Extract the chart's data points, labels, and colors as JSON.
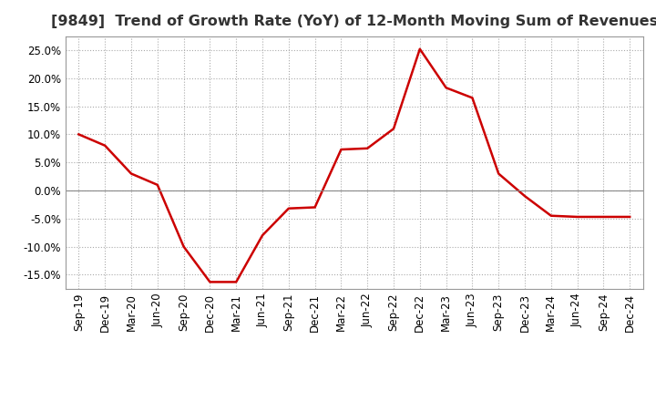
{
  "title": "[9849]  Trend of Growth Rate (YoY) of 12-Month Moving Sum of Revenues",
  "x_labels": [
    "Sep-19",
    "Dec-19",
    "Mar-20",
    "Jun-20",
    "Sep-20",
    "Dec-20",
    "Mar-21",
    "Jun-21",
    "Sep-21",
    "Dec-21",
    "Mar-22",
    "Jun-22",
    "Sep-22",
    "Dec-22",
    "Mar-23",
    "Jun-23",
    "Sep-23",
    "Dec-23",
    "Mar-24",
    "Jun-24",
    "Sep-24",
    "Dec-24"
  ],
  "y_values": [
    0.1,
    0.08,
    0.03,
    0.01,
    -0.1,
    -0.163,
    -0.163,
    -0.08,
    -0.032,
    -0.03,
    0.073,
    0.075,
    0.11,
    0.252,
    0.183,
    0.165,
    0.03,
    -0.01,
    -0.045,
    -0.047,
    -0.047,
    -0.047
  ],
  "line_color": "#CC0000",
  "background_color": "#FFFFFF",
  "plot_bg_color": "#FFFFFF",
  "grid_color": "#AAAAAA",
  "ylim": [
    -0.175,
    0.275
  ],
  "yticks": [
    -0.15,
    -0.1,
    -0.05,
    0.0,
    0.05,
    0.1,
    0.15,
    0.2,
    0.25
  ],
  "title_fontsize": 11.5,
  "tick_fontsize": 8.5,
  "line_width": 1.8
}
